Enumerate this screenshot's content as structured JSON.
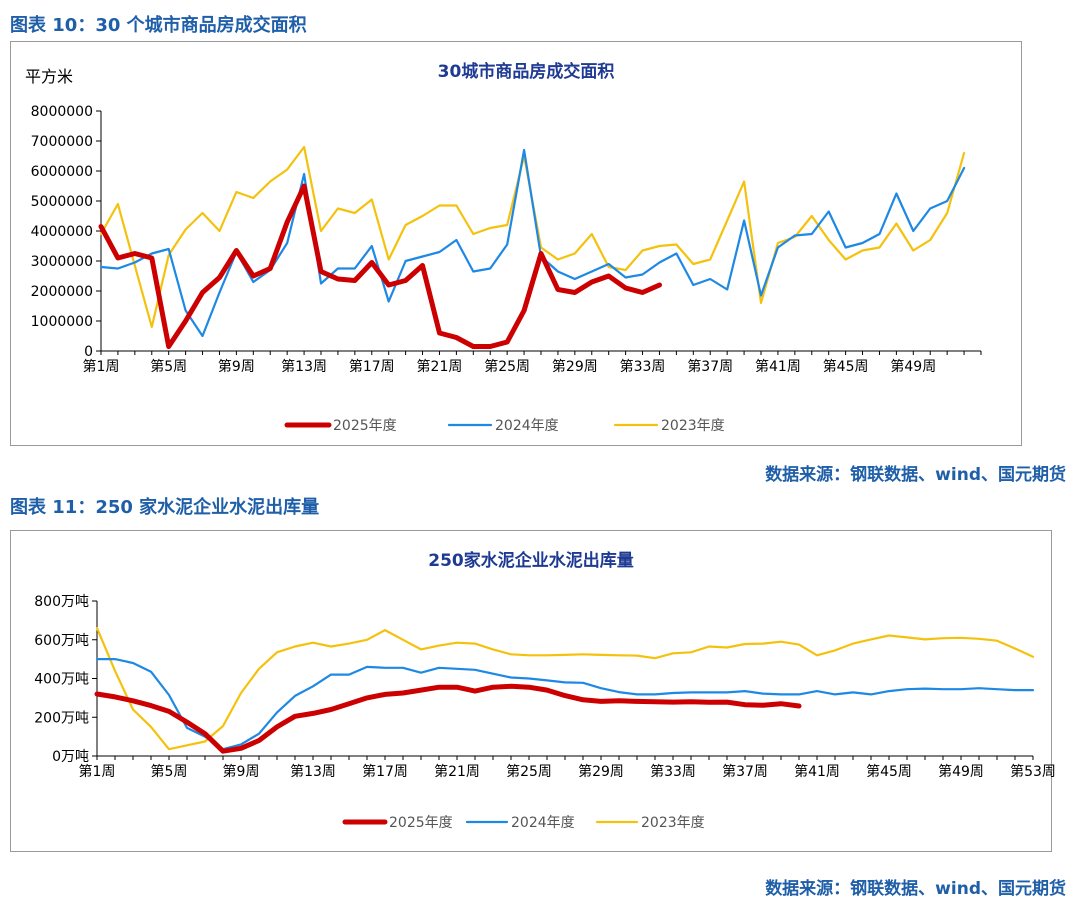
{
  "figure1": {
    "caption": "图表 10：30 个城市商品房成交面积",
    "source": "数据来源：钢联数据、wind、国元期货"
  },
  "figure2": {
    "caption": "图表 11：250 家水泥企业水泥出库量",
    "source": "数据来源：钢联数据、wind、国元期货"
  },
  "colors": {
    "s2025": "#cc0000",
    "s2024": "#1e88e5",
    "s2023": "#f4c20d",
    "title": "#1f3a93",
    "caption": "#1f5fa8"
  },
  "chart_data": [
    {
      "type": "line",
      "title": "30城市商品房成交面积",
      "ylabel": "平方米",
      "xlabel": "",
      "ylim": [
        0,
        8000000
      ],
      "yticks": [
        0,
        1000000,
        2000000,
        3000000,
        4000000,
        5000000,
        6000000,
        7000000,
        8000000
      ],
      "ytick_labels": [
        "0",
        "1000000",
        "2000000",
        "3000000",
        "4000000",
        "5000000",
        "6000000",
        "7000000",
        "8000000"
      ],
      "xlim": [
        1,
        53
      ],
      "xtick_labels": [
        "第1周",
        "第5周",
        "第9周",
        "第13周",
        "第17周",
        "第21周",
        "第25周",
        "第29周",
        "第33周",
        "第37周",
        "第41周",
        "第45周",
        "第49周"
      ],
      "grid": false,
      "legend": "bottom",
      "series": [
        {
          "name": "2025年度",
          "x_start": 1,
          "values": [
            4150000,
            3100000,
            3250000,
            3100000,
            150000,
            1000000,
            1950000,
            2450000,
            3350000,
            2500000,
            2750000,
            4300000,
            5500000,
            2650000,
            2400000,
            2350000,
            2950000,
            2200000,
            2350000,
            2850000,
            600000,
            450000,
            150000,
            150000,
            300000,
            1350000,
            3250000,
            2050000,
            1950000,
            2300000,
            2500000,
            2100000,
            1950000,
            2200000
          ]
        },
        {
          "name": "2024年度",
          "x_start": 1,
          "values": [
            2800000,
            2750000,
            2950000,
            3250000,
            3400000,
            1350000,
            500000,
            1950000,
            3300000,
            2300000,
            2700000,
            3600000,
            5900000,
            2250000,
            2750000,
            2750000,
            3500000,
            1650000,
            3000000,
            3150000,
            3300000,
            3700000,
            2650000,
            2750000,
            3550000,
            6700000,
            3150000,
            2650000,
            2400000,
            2650000,
            2900000,
            2450000,
            2550000,
            2950000,
            3250000,
            2200000,
            2400000,
            2050000,
            4350000,
            1850000,
            3450000,
            3850000,
            3900000,
            4650000,
            3450000,
            3600000,
            3900000,
            5250000,
            4000000,
            4750000,
            5000000,
            6100000
          ]
        },
        {
          "name": "2023年度",
          "x_start": 1,
          "values": [
            3900000,
            4900000,
            2850000,
            800000,
            3200000,
            4050000,
            4600000,
            4000000,
            5300000,
            5100000,
            5650000,
            6050000,
            6800000,
            4000000,
            4750000,
            4600000,
            5050000,
            3050000,
            4200000,
            4500000,
            4850000,
            4850000,
            3900000,
            4100000,
            4200000,
            6500000,
            3450000,
            3050000,
            3250000,
            3900000,
            2800000,
            2700000,
            3350000,
            3500000,
            3550000,
            2900000,
            3050000,
            4350000,
            5650000,
            1600000,
            3600000,
            3800000,
            4500000,
            3700000,
            3050000,
            3350000,
            3450000,
            4250000,
            3350000,
            3700000,
            4600000,
            6600000
          ]
        }
      ]
    },
    {
      "type": "line",
      "title": "250家水泥企业水泥出库量",
      "ylabel": "",
      "xlabel": "",
      "ylim": [
        0,
        800
      ],
      "yticks": [
        0,
        200,
        400,
        600,
        800
      ],
      "ytick_labels": [
        "0万吨",
        "200万吨",
        "400万吨",
        "600万吨",
        "800万吨"
      ],
      "xlim": [
        1,
        53
      ],
      "xtick_labels": [
        "第1周",
        "第5周",
        "第9周",
        "第13周",
        "第17周",
        "第21周",
        "第25周",
        "第29周",
        "第33周",
        "第37周",
        "第41周",
        "第45周",
        "第49周",
        "第53周"
      ],
      "grid": false,
      "legend": "bottom",
      "series": [
        {
          "name": "2025年度",
          "x_start": 1,
          "values": [
            320,
            305,
            285,
            260,
            230,
            175,
            115,
            25,
            40,
            80,
            150,
            205,
            220,
            240,
            270,
            300,
            318,
            325,
            340,
            355,
            355,
            335,
            355,
            360,
            355,
            340,
            312,
            290,
            282,
            285,
            282,
            280,
            278,
            280,
            277,
            278,
            265,
            262,
            270,
            258
          ]
        },
        {
          "name": "2024年度",
          "x_start": 1,
          "values": [
            500,
            500,
            480,
            435,
            315,
            145,
            100,
            35,
            60,
            115,
            225,
            310,
            360,
            420,
            420,
            460,
            455,
            455,
            430,
            455,
            450,
            445,
            425,
            405,
            400,
            390,
            380,
            378,
            350,
            330,
            318,
            318,
            325,
            328,
            328,
            328,
            335,
            322,
            318,
            318,
            335,
            318,
            328,
            318,
            335,
            345,
            348,
            345,
            345,
            350,
            345,
            340,
            340
          ]
        },
        {
          "name": "2023年度",
          "x_start": 1,
          "values": [
            660,
            440,
            240,
            150,
            35,
            55,
            75,
            155,
            325,
            450,
            535,
            565,
            585,
            565,
            580,
            600,
            650,
            600,
            550,
            570,
            585,
            580,
            550,
            525,
            520,
            520,
            522,
            525,
            522,
            520,
            518,
            505,
            530,
            535,
            565,
            560,
            578,
            580,
            590,
            575,
            520,
            545,
            580,
            602,
            622,
            612,
            602,
            608,
            610,
            605,
            595,
            555,
            512
          ]
        }
      ]
    }
  ]
}
